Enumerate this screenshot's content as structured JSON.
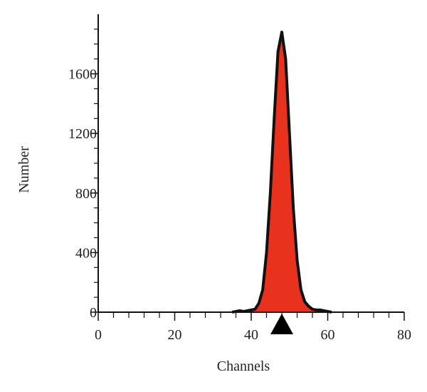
{
  "chart_data": {
    "type": "area",
    "x_label": "Channels",
    "y_label": "Number",
    "x": [
      35,
      36,
      37,
      38,
      39,
      40,
      41,
      42,
      43,
      44,
      45,
      46,
      47,
      48,
      49,
      50,
      51,
      52,
      53,
      54,
      55,
      56,
      57,
      58,
      59,
      60,
      61
    ],
    "values": [
      0,
      5,
      10,
      5,
      10,
      15,
      20,
      60,
      150,
      400,
      800,
      1300,
      1750,
      1880,
      1700,
      1200,
      700,
      350,
      150,
      70,
      40,
      20,
      15,
      15,
      10,
      5,
      0
    ],
    "color": "#e8321e",
    "xlim": [
      0,
      80
    ],
    "xticks": [
      0,
      20,
      40,
      60,
      80
    ],
    "x_minor_ticks": [
      4,
      8,
      12,
      16,
      24,
      28,
      32,
      36,
      44,
      48,
      52,
      56,
      64,
      68,
      72,
      76
    ],
    "ylim": [
      0,
      2000
    ],
    "yticks": [
      0,
      400,
      800,
      1200,
      1600
    ],
    "y_minor_ticks": [
      100,
      200,
      300,
      500,
      600,
      700,
      900,
      1000,
      1100,
      1300,
      1400,
      1500,
      1700,
      1800,
      1900
    ],
    "peak_marker": 48
  }
}
